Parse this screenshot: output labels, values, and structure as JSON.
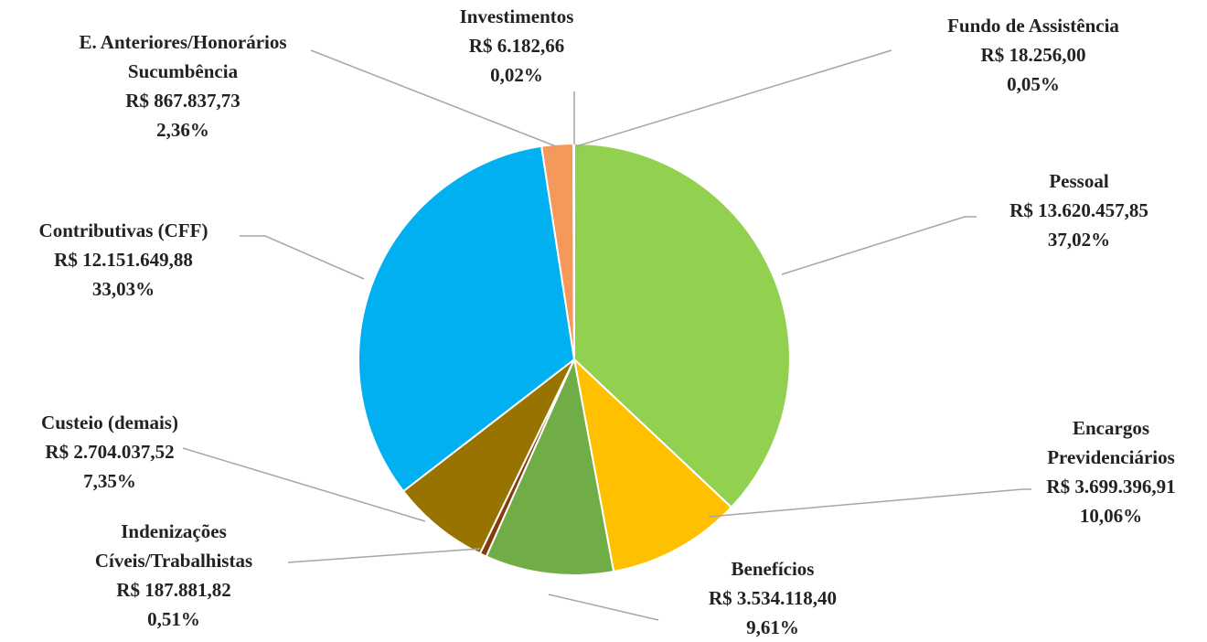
{
  "chart_data": {
    "type": "pie",
    "categories": [
      "Pessoal",
      "Encargos Previdenciários",
      "Benefícios",
      "Indenizações Cíveis/Trabalhistas",
      "Custeio (demais)",
      "Contributivas (CFF)",
      "E. Anteriores/Honorários Sucumbência",
      "Investimentos",
      "Fundo de Assistência"
    ],
    "values": [
      37.02,
      10.06,
      9.61,
      0.51,
      7.35,
      33.03,
      2.36,
      0.02,
      0.05
    ],
    "value_labels": [
      "37,02%",
      "10,06%",
      "9,61%",
      "0,51%",
      "7,35%",
      "33,03%",
      "2,36%",
      "0,02%",
      "0,05%"
    ],
    "amount_labels": [
      "R$ 13.620.457,85",
      "R$ 3.699.396,91",
      "R$ 3.534.118,40",
      "R$ 187.881,82",
      "R$ 2.704.037,52",
      "R$ 12.151.649,88",
      "R$ 867.837,73",
      "R$ 6.182,66",
      "R$ 18.256,00"
    ],
    "colors": [
      "#92d050",
      "#ffc000",
      "#70ad47",
      "#843c0c",
      "#997300",
      "#00b0f0",
      "#f4995a",
      "#a5a5a5",
      "#4472c4"
    ]
  }
}
